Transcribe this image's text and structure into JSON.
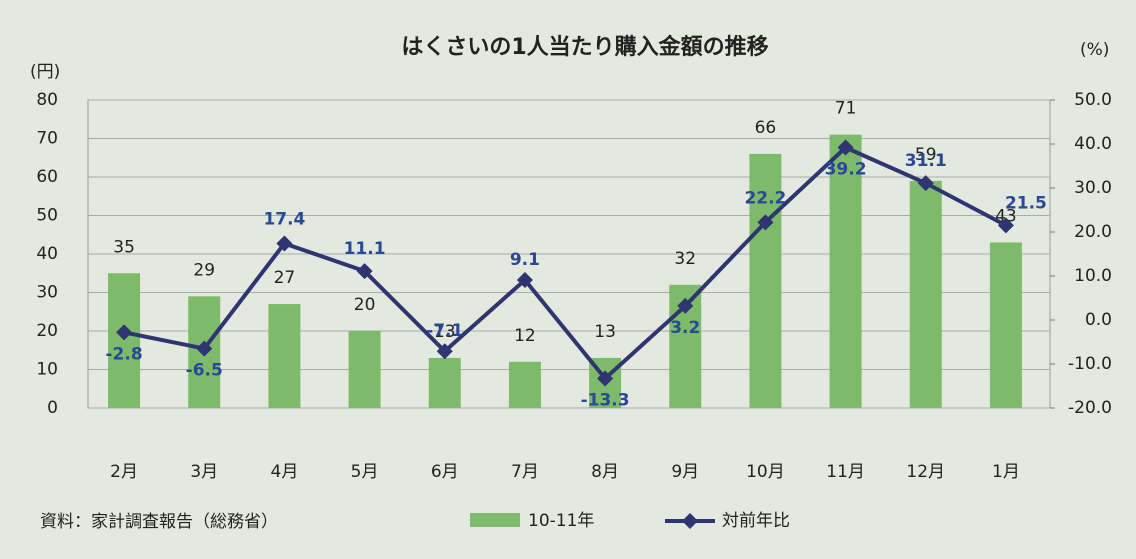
{
  "chart_data": {
    "type": "bar",
    "title": "はくさいの1人当たり購入金額の推移",
    "y_label": "(円)",
    "y2_label": "(%)",
    "source": "資料：家計調査報告（総務省）",
    "categories": [
      "2月",
      "3月",
      "4月",
      "5月",
      "6月",
      "7月",
      "8月",
      "9月",
      "10月",
      "11月",
      "12月",
      "1月"
    ],
    "series": [
      {
        "name": "10-11年",
        "type": "bar",
        "color": "#7dbb6a",
        "values": [
          35,
          29,
          27,
          20,
          13,
          12,
          13,
          32,
          66,
          71,
          59,
          43
        ]
      },
      {
        "name": "対前年比",
        "type": "line",
        "axis": "y2",
        "color": "#2e3570",
        "values": [
          -2.8,
          -6.5,
          17.4,
          11.1,
          -7.1,
          9.1,
          -13.3,
          3.2,
          22.2,
          39.2,
          31.1,
          21.5
        ]
      }
    ],
    "ylim": [
      0,
      80
    ],
    "yticks": [
      0,
      10,
      20,
      30,
      40,
      50,
      60,
      70,
      80
    ],
    "y2lim": [
      -20,
      50
    ],
    "y2ticks": [
      {
        "value": -20,
        "label": "-20.0"
      },
      {
        "value": -10,
        "label": "-10.0"
      },
      {
        "value": 0,
        "label": "0.0"
      },
      {
        "value": 10,
        "label": "10.0"
      },
      {
        "value": 20,
        "label": "20.0"
      },
      {
        "value": 30,
        "label": "30.0"
      },
      {
        "value": 40,
        "label": "40.0"
      },
      {
        "value": 50,
        "label": "50.0"
      }
    ],
    "grid": true,
    "legend": "bottom"
  }
}
